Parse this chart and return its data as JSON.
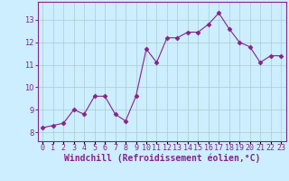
{
  "x": [
    0,
    1,
    2,
    3,
    4,
    5,
    6,
    7,
    8,
    9,
    10,
    11,
    12,
    13,
    14,
    15,
    16,
    17,
    18,
    19,
    20,
    21,
    22,
    23
  ],
  "y": [
    8.2,
    8.3,
    8.4,
    9.0,
    8.8,
    9.6,
    9.6,
    8.8,
    8.5,
    9.6,
    11.7,
    11.1,
    12.2,
    12.2,
    12.45,
    12.45,
    12.8,
    13.3,
    12.6,
    12.0,
    11.8,
    11.1,
    11.4,
    11.4
  ],
  "line_color": "#882288",
  "marker": "D",
  "marker_size": 2.5,
  "bg_color": "#cceeff",
  "grid_color": "#aacccc",
  "xlabel": "Windchill (Refroidissement éolien,°C)",
  "ylabel_ticks": [
    8,
    9,
    10,
    11,
    12,
    13
  ],
  "xtick_labels": [
    "0",
    "1",
    "2",
    "3",
    "4",
    "5",
    "6",
    "7",
    "8",
    "9",
    "10",
    "11",
    "12",
    "13",
    "14",
    "15",
    "16",
    "17",
    "18",
    "19",
    "20",
    "21",
    "22",
    "23"
  ],
  "ylim": [
    7.6,
    13.8
  ],
  "xlim": [
    -0.5,
    23.5
  ],
  "tick_color": "#882288",
  "tick_fontsize": 6.0,
  "xlabel_fontsize": 7.0,
  "spine_color": "#882288"
}
